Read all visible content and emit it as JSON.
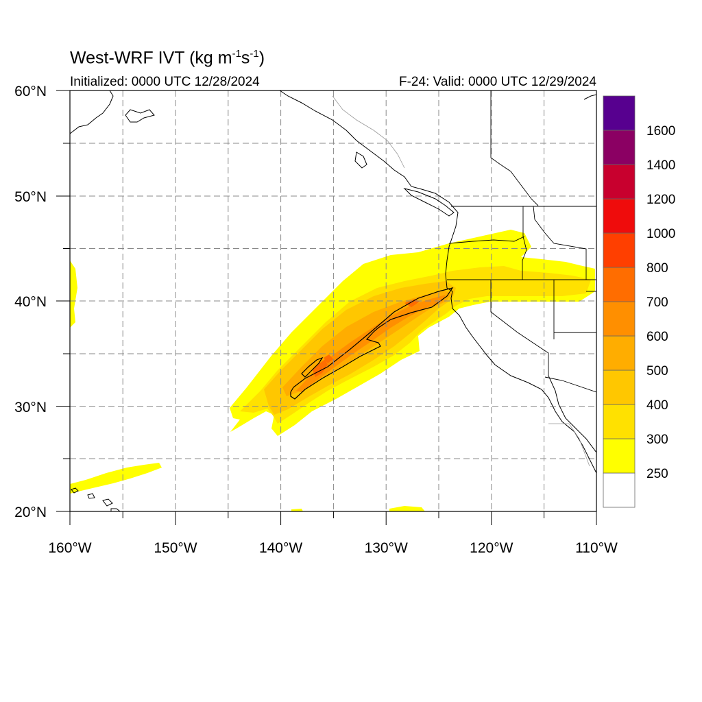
{
  "title": {
    "main": "West-WRF IVT (kg m",
    "sup1": "-1",
    "mid": "s",
    "sup2": "-1",
    "end": ")"
  },
  "init_text": "Initialized: 0000 UTC 12/28/2024",
  "valid_text": "F-24: Valid: 0000 UTC 12/29/2024",
  "map": {
    "lon_range": [
      -160,
      -110
    ],
    "lat_range": [
      20,
      60
    ],
    "lon_labels": [
      "160°W",
      "150°W",
      "140°W",
      "130°W",
      "120°W",
      "110°W"
    ],
    "lat_labels": [
      "60°N",
      "50°N",
      "40°N",
      "30°N",
      "20°N"
    ],
    "gridlines": "dashed every 5 degrees"
  },
  "colorbar": {
    "labels": [
      "250",
      "300",
      "400",
      "500",
      "600",
      "700",
      "800",
      "1000",
      "1200",
      "1400",
      "1600"
    ],
    "colors": [
      "#ffffff",
      "#ffff00",
      "#ffe100",
      "#ffc700",
      "#ffad00",
      "#ff8f00",
      "#ff6d00",
      "#ff3f00",
      "#ef0c0c",
      "#c8002e",
      "#8b0063",
      "#57008f"
    ]
  },
  "colors": {
    "background": "#ffffff",
    "grid": "#888888",
    "coastline": "#000000"
  }
}
